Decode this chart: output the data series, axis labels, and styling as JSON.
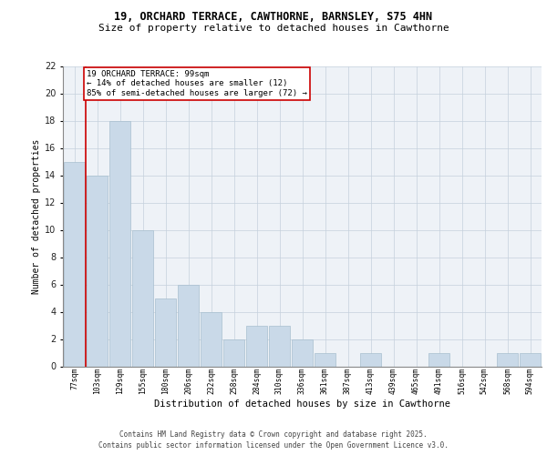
{
  "title1": "19, ORCHARD TERRACE, CAWTHORNE, BARNSLEY, S75 4HN",
  "title2": "Size of property relative to detached houses in Cawthorne",
  "xlabel": "Distribution of detached houses by size in Cawthorne",
  "ylabel": "Number of detached properties",
  "categories": [
    "77sqm",
    "103sqm",
    "129sqm",
    "155sqm",
    "180sqm",
    "206sqm",
    "232sqm",
    "258sqm",
    "284sqm",
    "310sqm",
    "336sqm",
    "361sqm",
    "387sqm",
    "413sqm",
    "439sqm",
    "465sqm",
    "491sqm",
    "516sqm",
    "542sqm",
    "568sqm",
    "594sqm"
  ],
  "values": [
    15,
    14,
    18,
    10,
    5,
    6,
    4,
    2,
    3,
    3,
    2,
    1,
    0,
    1,
    0,
    0,
    1,
    0,
    0,
    1,
    1
  ],
  "bar_color": "#c9d9e8",
  "bar_edge_color": "#a8bfcf",
  "annotation_text": "19 ORCHARD TERRACE: 99sqm\n← 14% of detached houses are smaller (12)\n85% of semi-detached houses are larger (72) →",
  "annotation_box_color": "#ffffff",
  "annotation_box_edge_color": "#cc0000",
  "marker_line_color": "#cc0000",
  "ylim": [
    0,
    22
  ],
  "yticks": [
    0,
    2,
    4,
    6,
    8,
    10,
    12,
    14,
    16,
    18,
    20,
    22
  ],
  "footer_line1": "Contains HM Land Registry data © Crown copyright and database right 2025.",
  "footer_line2": "Contains public sector information licensed under the Open Government Licence v3.0.",
  "bg_color": "#eef2f7",
  "grid_color": "#c5d0dc",
  "title1_fontsize": 8.5,
  "title2_fontsize": 8.0,
  "xlabel_fontsize": 7.5,
  "ylabel_fontsize": 7.0,
  "xtick_fontsize": 5.8,
  "ytick_fontsize": 7.0,
  "annot_fontsize": 6.5,
  "footer_fontsize": 5.5
}
